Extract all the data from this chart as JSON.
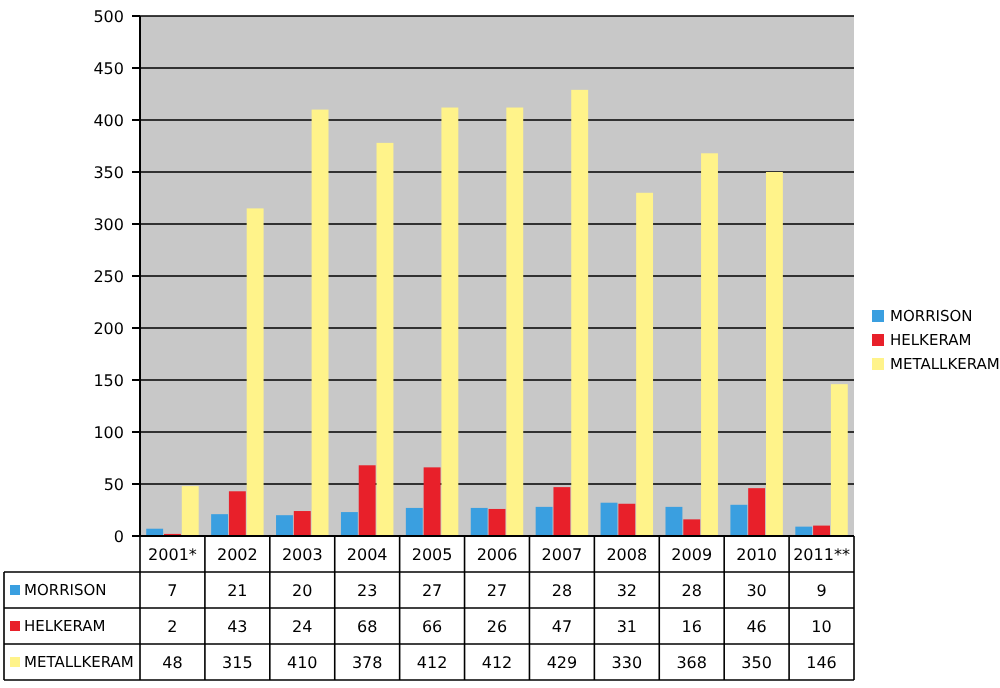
{
  "chart_data": {
    "type": "bar",
    "categories": [
      "2001*",
      "2002",
      "2003",
      "2004",
      "2005",
      "2006",
      "2007",
      "2008",
      "2009",
      "2010",
      "2011**"
    ],
    "series": [
      {
        "name": "MORRISON",
        "color": "#3a9fe0",
        "values": [
          7,
          21,
          20,
          23,
          27,
          27,
          28,
          32,
          28,
          30,
          9
        ]
      },
      {
        "name": "HELKERAM",
        "color": "#e8202a",
        "values": [
          2,
          43,
          24,
          68,
          66,
          26,
          47,
          31,
          16,
          46,
          10
        ]
      },
      {
        "name": "METALLKERAM",
        "color": "#fff38a",
        "values": [
          48,
          315,
          410,
          378,
          412,
          412,
          429,
          330,
          368,
          350,
          146
        ]
      }
    ],
    "ylim": [
      0,
      500
    ],
    "yticks": [
      0,
      50,
      100,
      150,
      200,
      250,
      300,
      350,
      400,
      450,
      500
    ],
    "grid": "y",
    "legend": "right",
    "data_labels": true
  }
}
